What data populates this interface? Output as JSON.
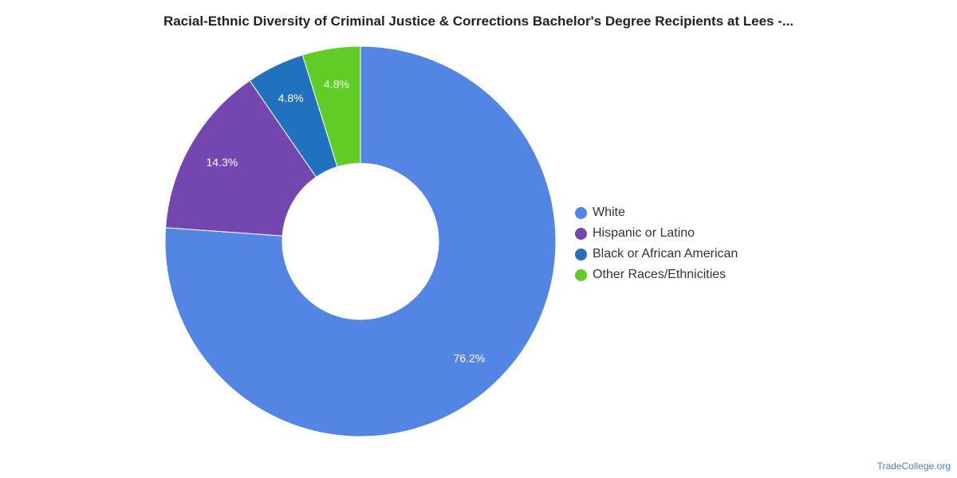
{
  "chart_data": {
    "type": "pie",
    "title": "Racial-Ethnic Diversity of Criminal Justice & Corrections Bachelor's Degree Recipients at Lees -...",
    "categories": [
      "White",
      "Hispanic or Latino",
      "Black or African American",
      "Other Races/Ethnicities"
    ],
    "values": [
      76.2,
      14.3,
      4.8,
      4.8
    ],
    "value_labels": [
      "76.2%",
      "14.3%",
      "4.8%",
      "4.8%"
    ],
    "colors": [
      "#5386e4",
      "#7446b0",
      "#2172be",
      "#62cc26"
    ],
    "legend_position": "right",
    "donut": true
  },
  "footer": {
    "source": "TradeCollege.org"
  }
}
